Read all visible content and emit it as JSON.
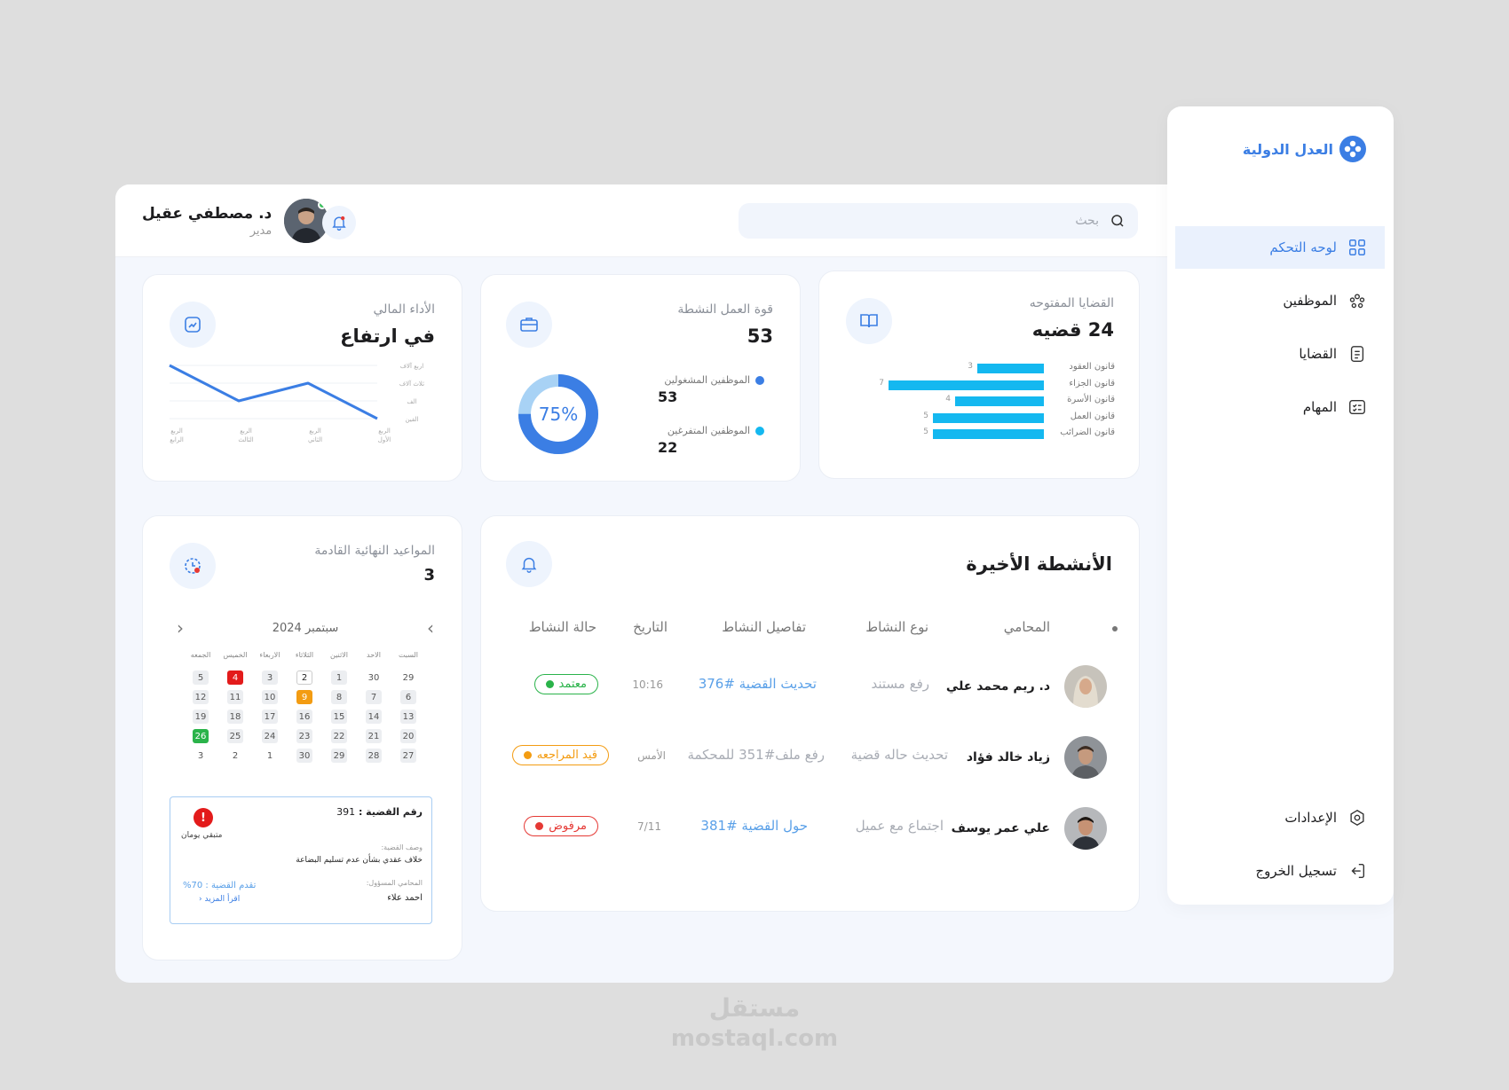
{
  "brand": {
    "name": "العدل الدولية",
    "accent": "#3b7ee4"
  },
  "sidebar": {
    "items": [
      {
        "label": "لوحه التحكم",
        "icon": "grid-icon",
        "active": true
      },
      {
        "label": "الموظفين",
        "icon": "users-icon",
        "active": false
      },
      {
        "label": "القضايا",
        "icon": "document-icon",
        "active": false
      },
      {
        "label": "المهام",
        "icon": "tasks-icon",
        "active": false
      }
    ],
    "settings_label": "الإعدادات",
    "logout_label": "تسجيل الخروج"
  },
  "header": {
    "search_placeholder": "بحث",
    "user_name": "د. مصطفي عقيل",
    "user_role": "مدير"
  },
  "open_cases": {
    "title": "القضايا المفتوحه",
    "value": "24 قضيه",
    "bars": [
      {
        "label": "قانون العقود",
        "value": 3
      },
      {
        "label": "قانون الجزاء",
        "value": 7
      },
      {
        "label": "قانون الأسرة",
        "value": 4
      },
      {
        "label": "قانون العمل",
        "value": 5
      },
      {
        "label": "قانون الضرائب",
        "value": 5
      }
    ]
  },
  "workforce": {
    "title": "قوة العمل النشطة",
    "value": "53",
    "percent_label": "75%",
    "percent": 75,
    "legend": [
      {
        "label": "الموظفين المشغولين",
        "value": "53",
        "color": "#3b7ee4"
      },
      {
        "label": "الموظفين المتفرغين",
        "value": "22",
        "color": "#14b8f0"
      }
    ]
  },
  "financial": {
    "title": "الأداء المالي",
    "value": "في ارتفاع",
    "y_labels": [
      "اربع آلاف",
      "ثلاث آلاف",
      "الف",
      "الفين"
    ],
    "x_labels": [
      "الربع الرابع",
      "الربع الثالث",
      "الربع الثاني",
      "الربع الأول"
    ],
    "chart_data": {
      "type": "line",
      "categories": [
        "الربع الرابع",
        "الربع الثالث",
        "الربع الثاني",
        "الربع الأول"
      ],
      "values": [
        4000,
        3000,
        3500,
        2500
      ]
    }
  },
  "deadlines": {
    "title": "المواعيد النهائية القادمة",
    "value": "3",
    "month": "سبتمبر 2024",
    "weekdays": [
      "السبت",
      "الاحد",
      "الاثنين",
      "الثلاثاء",
      "الاربعاء",
      "الخميس",
      "الجمعه"
    ],
    "weeks": [
      [
        "29",
        "30",
        "1",
        "2",
        "3",
        "4",
        "5"
      ],
      [
        "6",
        "7",
        "8",
        "9",
        "10",
        "11",
        "12"
      ],
      [
        "13",
        "14",
        "15",
        "16",
        "17",
        "18",
        "19"
      ],
      [
        "20",
        "21",
        "22",
        "23",
        "24",
        "25",
        "26"
      ],
      [
        "27",
        "28",
        "29",
        "30",
        "1",
        "2",
        "3"
      ]
    ],
    "case": {
      "number_label": "رقم القضية :",
      "number": "391",
      "plaintiff": "متبقي يومان",
      "desc_label": "وصف القضية:",
      "desc": "خلاف عقدي بشأن عدم تسليم البضاعة",
      "lawyer_label": "المحامي المسؤول:",
      "lawyer": "احمد علاء",
      "progress_label": "تقدم القضية : 70%",
      "read_more": "اقرأ المزيد"
    }
  },
  "activities": {
    "title": "الأنشطة الأخيرة",
    "columns": [
      "المحامي",
      "نوع النشاط",
      "تفاصيل النشاط",
      "التاريخ",
      "حالة النشاط"
    ],
    "rows": [
      {
        "lawyer": "د. ريم محمد علي",
        "type": "رفع مستند",
        "detail": "تحديث القضية #376",
        "date": "10:16",
        "status": "معتمد",
        "status_color": "#2ab34a"
      },
      {
        "lawyer": "زياد خالد فؤاد",
        "type": "تحديث حاله قضية",
        "detail": "رفع ملف#351 للمحكمة",
        "date": "الأمس",
        "status": "قيد المراجعه",
        "status_color": "#f39c12"
      },
      {
        "lawyer": "علي عمر يوسف",
        "type": "اجتماع مع عميل",
        "detail": "حول القضية #381",
        "date": "7/11",
        "status": "مرفوض",
        "status_color": "#e53935"
      }
    ]
  },
  "watermark": {
    "arabic": "مستقل",
    "latin": "mostaql.com"
  }
}
